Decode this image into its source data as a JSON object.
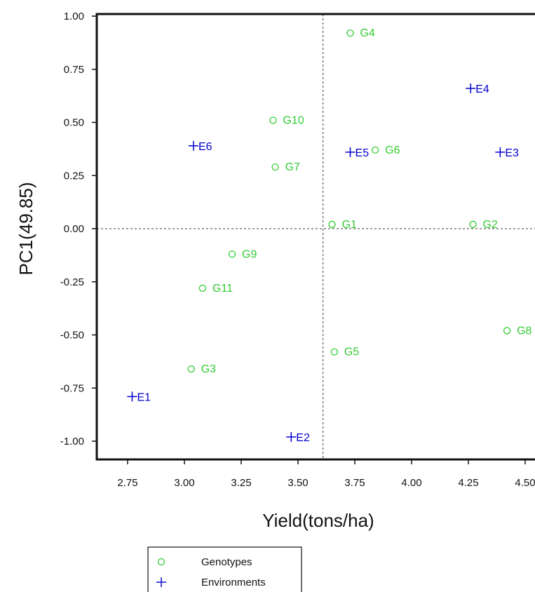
{
  "chart_data": {
    "type": "scatter",
    "xlabel": "Yield(tons/ha)",
    "ylabel": "PC1(49.85)",
    "xlim": [
      2.55,
      4.55
    ],
    "ylim": [
      -1.09,
      1.0
    ],
    "x_ticks": [
      "2.75",
      "3.00",
      "3.25",
      "3.50",
      "3.75",
      "4.00",
      "4.25",
      "4.50"
    ],
    "x_tick_values": [
      2.75,
      3.0,
      3.25,
      3.5,
      3.75,
      4.0,
      4.25,
      4.5
    ],
    "y_ticks": [
      "1.00",
      "0.75",
      "0.50",
      "0.25",
      "0.00",
      "-0.25",
      "-0.50",
      "-0.75",
      "-1.00"
    ],
    "y_tick_values": [
      1.0,
      0.75,
      0.5,
      0.25,
      0.0,
      -0.25,
      -0.5,
      -0.75,
      -1.0
    ],
    "reference_lines": {
      "x": 3.61,
      "y": 0.0
    },
    "grid": false,
    "legend": {
      "position": "bottom-left",
      "entries": [
        {
          "name": "Genotypes",
          "marker": "circle",
          "color": "#33cc33"
        },
        {
          "name": "Environments",
          "marker": "plus",
          "color": "#0000cc"
        }
      ]
    },
    "series": [
      {
        "name": "Genotypes",
        "marker": "circle",
        "color": "#33cc33",
        "points": [
          {
            "label": "G1",
            "x": 3.65,
            "y": 0.02
          },
          {
            "label": "G2",
            "x": 4.27,
            "y": 0.02
          },
          {
            "label": "G3",
            "x": 3.03,
            "y": -0.66
          },
          {
            "label": "G4",
            "x": 3.73,
            "y": 0.92
          },
          {
            "label": "G5",
            "x": 3.66,
            "y": -0.58
          },
          {
            "label": "G6",
            "x": 3.84,
            "y": 0.37
          },
          {
            "label": "G7",
            "x": 3.4,
            "y": 0.29
          },
          {
            "label": "G8",
            "x": 4.42,
            "y": -0.48
          },
          {
            "label": "G9",
            "x": 3.21,
            "y": -0.12
          },
          {
            "label": "G10",
            "x": 3.39,
            "y": 0.51
          },
          {
            "label": "G11",
            "x": 3.08,
            "y": -0.28
          }
        ]
      },
      {
        "name": "Environments",
        "marker": "plus",
        "color": "#0000cc",
        "points": [
          {
            "label": "E1",
            "x": 2.77,
            "y": -0.79
          },
          {
            "label": "E2",
            "x": 3.47,
            "y": -0.98
          },
          {
            "label": "E3",
            "x": 4.39,
            "y": 0.36
          },
          {
            "label": "E4",
            "x": 4.26,
            "y": 0.66
          },
          {
            "label": "E5",
            "x": 3.73,
            "y": 0.36
          },
          {
            "label": "E6",
            "x": 3.04,
            "y": 0.39
          }
        ]
      }
    ]
  }
}
